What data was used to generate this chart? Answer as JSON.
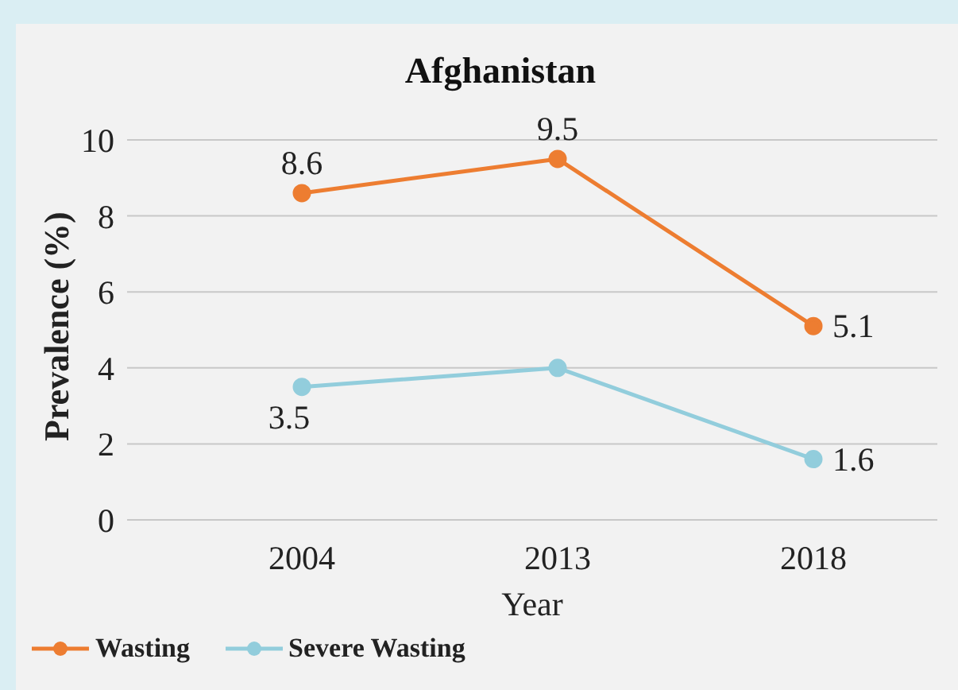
{
  "chart_data": {
    "type": "line",
    "title": "Afghanistan",
    "xlabel": "Year",
    "ylabel": "Prevalence (%)",
    "categories": [
      "2004",
      "2013",
      "2018"
    ],
    "series": [
      {
        "name": "Wasting",
        "color": "#ed7d31",
        "values": [
          8.6,
          9.5,
          5.1
        ],
        "value_labels": [
          "8.6",
          "9.5",
          "5.1"
        ]
      },
      {
        "name": "Severe Wasting",
        "color": "#92cddc",
        "values": [
          3.5,
          4.0,
          1.6
        ],
        "value_labels": [
          "3.5",
          null,
          "1.6"
        ]
      }
    ],
    "ylim": [
      0,
      10
    ],
    "yticks": [
      0,
      2,
      4,
      6,
      8,
      10
    ],
    "grid": "y",
    "legend": "bottom",
    "marker": "circle",
    "line_style": "solid"
  }
}
